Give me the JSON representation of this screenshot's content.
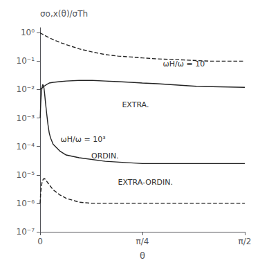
{
  "chart_data": {
    "type": "line",
    "log": "y",
    "grid": false,
    "xlabel": "θ",
    "ylabel": "σo,x(θ)/σTh",
    "xlim": [
      0,
      1.5707963
    ],
    "xticks": [
      0,
      {
        "value": 0.7853982,
        "label": "π/4"
      },
      {
        "value": 1.5707963,
        "label": "π/2"
      }
    ],
    "ylim": [
      1e-07,
      1.5
    ],
    "yticks": [
      {
        "value": 1e-07,
        "label": "10⁻⁷"
      },
      {
        "value": 1e-06,
        "label": "10⁻⁶"
      },
      {
        "value": 1e-05,
        "label": "10⁻⁵"
      },
      {
        "value": 0.0001,
        "label": "10⁻⁴"
      },
      {
        "value": 0.001,
        "label": "10⁻³"
      },
      {
        "value": 0.01,
        "label": "10⁻²"
      },
      {
        "value": 0.1,
        "label": "10⁻¹"
      },
      {
        "value": 1,
        "label": "10⁰"
      }
    ],
    "series": [
      {
        "color": "#222222",
        "line_style": "dashed",
        "x": [
          0.0,
          0.001,
          0.005,
          0.01,
          0.02,
          0.04,
          0.06,
          0.08,
          0.1,
          0.15,
          0.2,
          0.3,
          0.4,
          0.5,
          0.6,
          0.7,
          0.785,
          0.9,
          1.0,
          1.1,
          1.2,
          1.3,
          1.5707963
        ],
        "values": [
          1.0,
          0.98,
          0.95,
          0.92,
          0.87,
          0.78,
          0.7,
          0.63,
          0.57,
          0.46,
          0.38,
          0.27,
          0.21,
          0.17,
          0.15,
          0.14,
          0.13,
          0.12,
          0.115,
          0.11,
          0.105,
          0.1,
          0.1
        ]
      },
      {
        "color": "#222222",
        "line_style": "solid",
        "x": [
          0.0,
          0.001,
          0.005,
          0.01,
          0.02,
          0.03,
          0.04,
          0.05,
          0.07,
          0.1,
          0.15,
          0.2,
          0.3,
          0.4,
          0.5,
          0.6,
          0.7,
          0.785,
          0.9,
          1.0,
          1.2,
          1.5707963
        ],
        "values": [
          0.01,
          0.01,
          0.0105,
          0.011,
          0.012,
          0.013,
          0.014,
          0.015,
          0.017,
          0.018,
          0.019,
          0.02,
          0.021,
          0.021,
          0.02,
          0.019,
          0.018,
          0.017,
          0.016,
          0.015,
          0.013,
          0.012
        ]
      },
      {
        "color": "#222222",
        "line_style": "solid",
        "x": [
          0.001,
          0.003,
          0.005,
          0.007,
          0.01,
          0.015,
          0.02,
          0.025,
          0.03,
          0.035,
          0.04,
          0.05,
          0.06,
          0.07,
          0.08,
          0.1,
          0.15,
          0.2,
          0.3,
          0.5,
          0.785,
          1.0,
          1.5707963
        ],
        "values": [
          0.001,
          0.002,
          0.0035,
          0.005,
          0.008,
          0.012,
          0.015,
          0.014,
          0.011,
          0.007,
          0.004,
          0.0015,
          0.0006,
          0.0003,
          0.0002,
          0.00012,
          7e-05,
          5e-05,
          4e-05,
          3e-05,
          2.5e-05,
          2.5e-05,
          2.5e-05
        ]
      },
      {
        "color": "#222222",
        "line_style": "dashed",
        "x": [
          0.0,
          0.001,
          0.003,
          0.005,
          0.01,
          0.015,
          0.02,
          0.03,
          0.04,
          0.05,
          0.07,
          0.1,
          0.15,
          0.2,
          0.3,
          0.4,
          0.5,
          0.785,
          1.0,
          1.5707963
        ],
        "values": [
          1e-06,
          1.2e-06,
          1.8e-06,
          2.5e-06,
          4e-06,
          5.5e-06,
          6.5e-06,
          7.5e-06,
          7e-06,
          6e-06,
          4.5e-06,
          3e-06,
          2e-06,
          1.5e-06,
          1.1e-06,
          1e-06,
          1e-06,
          1e-06,
          1e-06,
          1e-06
        ]
      }
    ],
    "annotations": [
      "ORDIN.",
      "ωH/ω = 10",
      "EXTRA.",
      "ωH/ω = 10³",
      "EXTRA-ORDIN."
    ]
  }
}
